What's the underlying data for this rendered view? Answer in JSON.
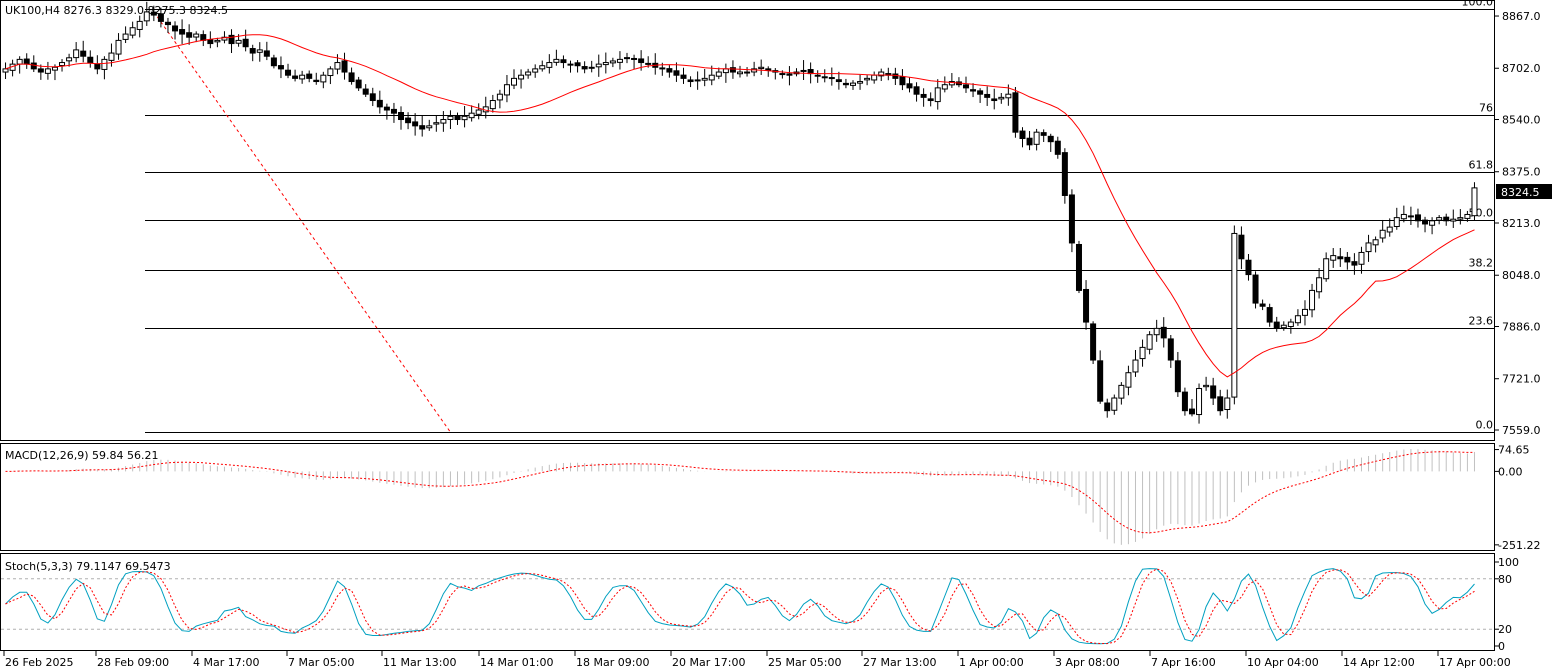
{
  "symbol_info": "UK100,H4  8276.3 8329.0 8275.3 8324.5",
  "macd_info": "MACD(12,26,9) 59.84 56.21",
  "stoch_info": "Stoch(5,3,3) 79.1147 69.5473",
  "current_price_label": "8324.5",
  "colors": {
    "bull_fill": "#ffffff",
    "bear_fill": "#000000",
    "ma": "#ff0000",
    "macd_hist": "#c0c0c0",
    "macd_signal": "#ff0000",
    "stoch_main": "#00a0c0",
    "stoch_signal": "#ff0000",
    "grid": "#000000"
  },
  "chart_data": [
    {
      "type": "candlestick",
      "panel": "main",
      "price_axis_ticks": [
        "8867.0",
        "8702.0",
        "8540.0",
        "8375.0",
        "8213.0",
        "8048.0",
        "7886.0",
        "7721.0",
        "7559.0"
      ],
      "price_axis_values": [
        8867,
        8702,
        8540,
        8375,
        8213,
        8048,
        7886,
        7721,
        7559
      ],
      "ylim": [
        7540,
        8905
      ],
      "time_labels": [
        "26 Feb 2025",
        "28 Feb 09:00",
        "4 Mar 17:00",
        "7 Mar 05:00",
        "11 Mar 13:00",
        "14 Mar 01:00",
        "18 Mar 09:00",
        "20 Mar 17:00",
        "25 Mar 05:00",
        "27 Mar 13:00",
        "1 Apr 00:00",
        "3 Apr 08:00",
        "7 Apr 16:00",
        "10 Apr 04:00",
        "14 Apr 12:00",
        "17 Apr 00:00"
      ],
      "fibonacci": {
        "levels": [
          {
            "label": "100.0",
            "price": 8890
          },
          {
            "label": "76",
            "price": 8555
          },
          {
            "label": "61.8",
            "price": 8375
          },
          {
            "label": "50.0",
            "price": 8223
          },
          {
            "label": "38.2",
            "price": 8066
          },
          {
            "label": "23.6",
            "price": 7880
          },
          {
            "label": "0.0",
            "price": 7552
          }
        ],
        "trend_line": {
          "from": [
            8880,
            "28 Feb"
          ],
          "to": [
            7552,
            "14 Mar"
          ]
        }
      },
      "price_path": [
        [
          8700,
          8715,
          8730,
          8715,
          8700,
          8690,
          8700,
          8705,
          8720,
          8735,
          8760,
          8740,
          8720,
          8700,
          8730,
          8750,
          8790,
          8810,
          8830,
          8850,
          8880,
          8870,
          8850,
          8840,
          8820,
          8810,
          8800,
          8810,
          8790,
          8780,
          8790,
          8800,
          8780,
          8790,
          8770,
          8750,
          8760,
          8740,
          8710,
          8700,
          8680,
          8670,
          8680,
          8670,
          8660,
          8680,
          8700,
          8720,
          8690,
          8660,
          8640,
          8620,
          8600,
          8580,
          8570,
          8560,
          8540,
          8530,
          8520,
          8510,
          8520,
          8530,
          8540,
          8550,
          8540,
          8550,
          8560,
          8570,
          8580,
          8600,
          8620,
          8650,
          8670,
          8680,
          8690,
          8700,
          8710,
          8720,
          8730,
          8720,
          8715,
          8710,
          8700,
          8705,
          8715,
          8720,
          8725,
          8730,
          8735,
          8730,
          8720,
          8715,
          8705,
          8700,
          8690,
          8680,
          8670,
          8660,
          8665,
          8670,
          8680,
          8690,
          8700,
          8690,
          8690,
          8690,
          8700,
          8705,
          8695,
          8690,
          8685,
          8680,
          8690,
          8695,
          8685,
          8680,
          8675,
          8670,
          8660,
          8650,
          8655,
          8660,
          8670,
          8680,
          8690,
          8680,
          8670,
          8650,
          8640,
          8620,
          8610,
          8600,
          8640,
          8650,
          8660,
          8650,
          8640,
          8630,
          8620,
          8610,
          8600,
          8610,
          8620,
          8500,
          8480,
          8460,
          8500,
          8490,
          8470,
          8430,
          8300,
          8150,
          8000,
          7900,
          7780,
          7650,
          7620,
          7660,
          7700,
          7740,
          7780,
          7820,
          7860,
          7880,
          7850,
          7780,
          7680,
          7620,
          7610,
          7690,
          7700,
          7660,
          7620,
          7660,
          8180,
          8100,
          8050,
          7960,
          7950,
          7900,
          7880,
          7890,
          7900,
          7920,
          7940,
          8000,
          8040,
          8100,
          8110,
          8100,
          8090,
          8080,
          8120,
          8150,
          8160,
          8190,
          8200,
          8230,
          8240,
          8235,
          8220,
          8210,
          8220,
          8230,
          8220,
          8225,
          8230,
          8240,
          8324
        ]
      ],
      "ma_period": 21
    },
    {
      "type": "bar",
      "panel": "macd",
      "name": "MACD(12,26,9)",
      "axis_ticks": [
        "74.65",
        "0.00",
        "-251.22"
      ],
      "axis_values": [
        74.65,
        0,
        -251.22
      ],
      "ylim": [
        -262,
        80
      ],
      "main_value": 59.84,
      "signal_value": 56.21
    },
    {
      "type": "line",
      "panel": "stoch",
      "name": "Stoch(5,3,3)",
      "axis_ticks": [
        "100",
        "80",
        "20",
        "0"
      ],
      "axis_values": [
        100,
        80,
        20,
        0
      ],
      "ylim": [
        0,
        100
      ],
      "main_value": 79.1147,
      "signal_value": 69.5473
    }
  ]
}
